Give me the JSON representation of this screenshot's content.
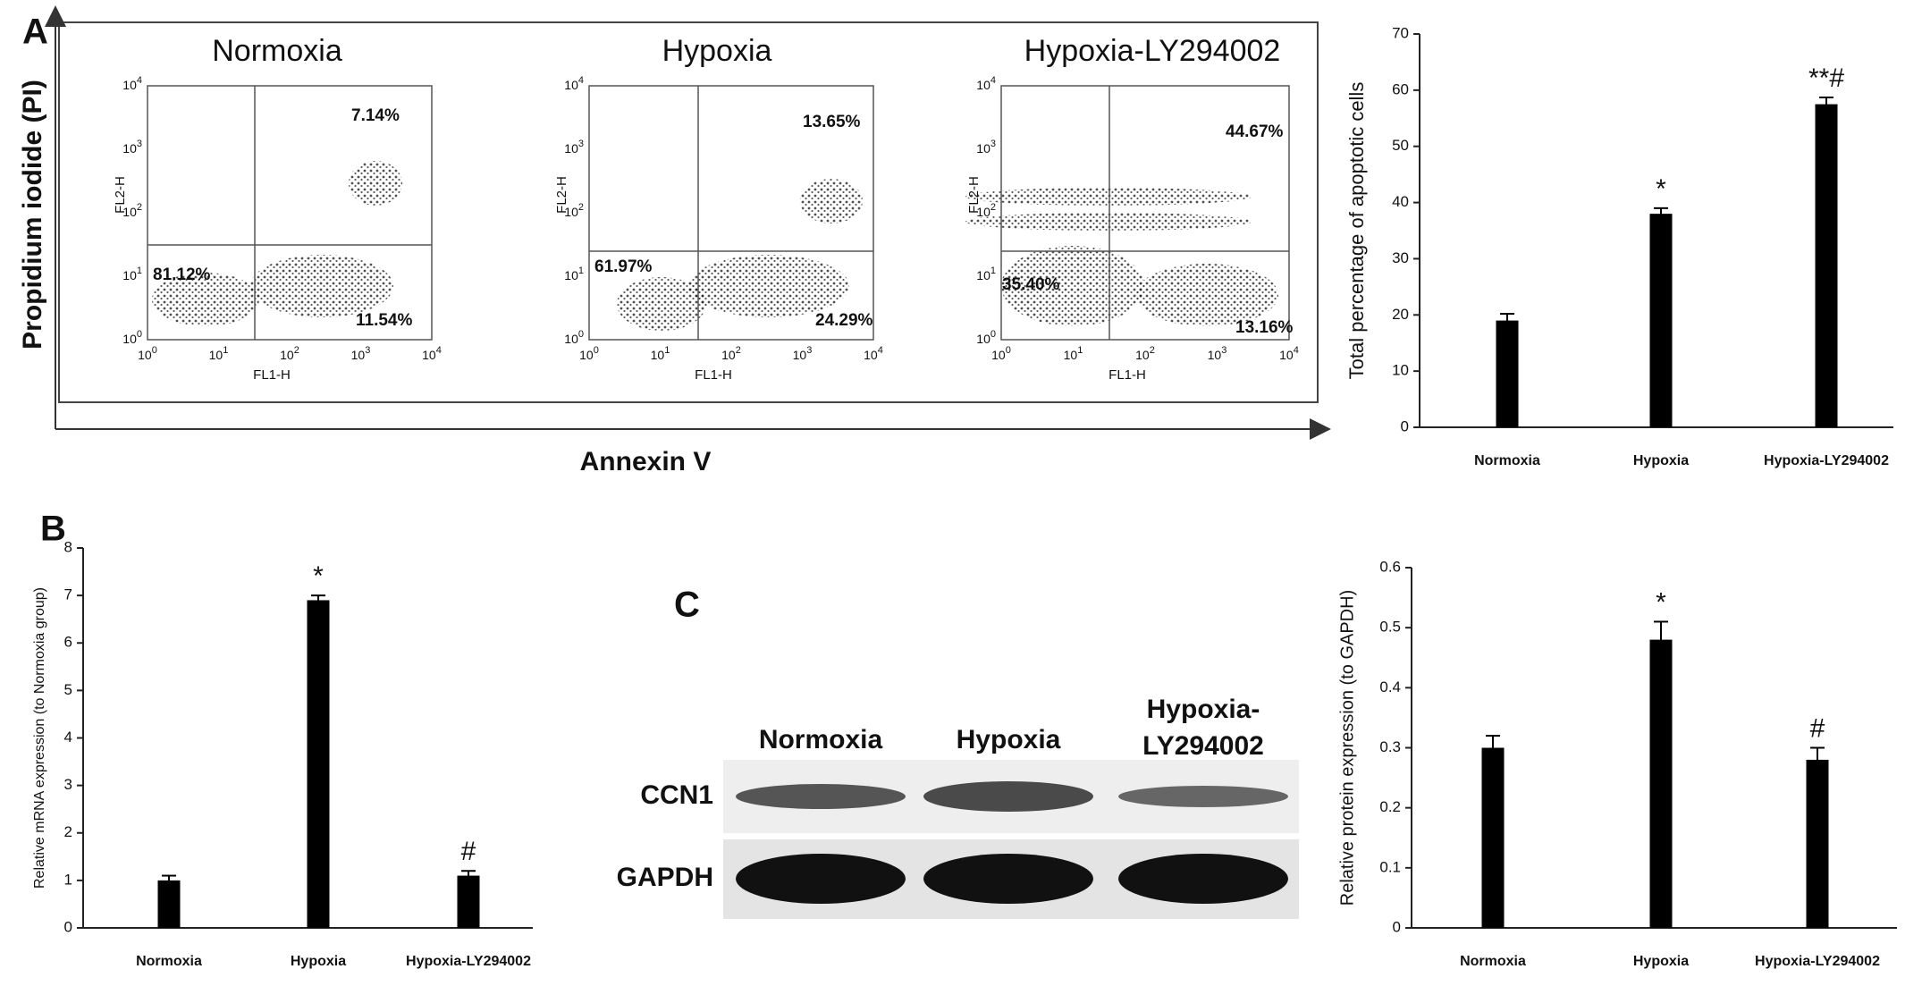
{
  "panel_labels": [
    "A",
    "B",
    "C"
  ],
  "flow": {
    "y_label": "Propidium iodide (PI)",
    "x_label": "Annexin V",
    "x_axis": "FL1-H",
    "y_axis": "FL2-H",
    "tick_base": "10",
    "tick_exponents": [
      "0",
      "1",
      "2",
      "3",
      "4"
    ],
    "plots": [
      {
        "title": "Normoxia",
        "upper_right": "7.14%",
        "lower_left": "81.12%",
        "lower_right": "11.54%"
      },
      {
        "title": "Hypoxia",
        "upper_right": "13.65%",
        "lower_left": "61.97%",
        "lower_right": "24.29%"
      },
      {
        "title": "Hypoxia-LY294002",
        "upper_right": "44.67%",
        "lower_left": "35.40%",
        "lower_right": "13.16%"
      }
    ]
  },
  "blot": {
    "lanes": [
      [
        "Normoxia"
      ],
      [
        "Hypoxia"
      ],
      [
        "Hypoxia-",
        "LY294002"
      ]
    ],
    "rows": [
      "CCN1",
      "GAPDH"
    ]
  },
  "chart_data": [
    {
      "type": "bar",
      "y_label": "Total percentage of apoptotic cells",
      "categories": [
        "Normoxia",
        "Hypoxia",
        "Hypoxia-LY294002"
      ],
      "values": [
        19,
        38,
        57.5
      ],
      "errors": [
        1.2,
        1,
        1.2
      ],
      "annotations": [
        null,
        "*",
        "**#"
      ],
      "color": "#000000",
      "ylim": [
        0,
        70
      ],
      "yticks": [
        0,
        10,
        20,
        30,
        40,
        50,
        60,
        70
      ]
    },
    {
      "type": "bar",
      "y_label": "Relative mRNA expression (to Normoxia group)",
      "categories": [
        "Normoxia",
        "Hypoxia",
        "Hypoxia-LY294002"
      ],
      "values": [
        1,
        6.9,
        1.1
      ],
      "errors": [
        0.1,
        0.1,
        0.1
      ],
      "annotations": [
        null,
        "*",
        "#"
      ],
      "color": "#000000",
      "ylim": [
        0,
        8
      ],
      "yticks": [
        0,
        1,
        2,
        3,
        4,
        5,
        6,
        7,
        8
      ]
    },
    {
      "type": "bar",
      "y_label": "Relative protein expression (to GAPDH)",
      "categories": [
        "Normoxia",
        "Hypoxia",
        "Hypoxia-LY294002"
      ],
      "values": [
        0.3,
        0.48,
        0.28
      ],
      "errors": [
        0.02,
        0.03,
        0.02
      ],
      "annotations": [
        null,
        "*",
        "#"
      ],
      "color": "#000000",
      "ylim": [
        0,
        0.6
      ],
      "yticks": [
        0,
        0.1,
        0.2,
        0.3,
        0.4,
        0.5,
        0.6
      ]
    }
  ]
}
